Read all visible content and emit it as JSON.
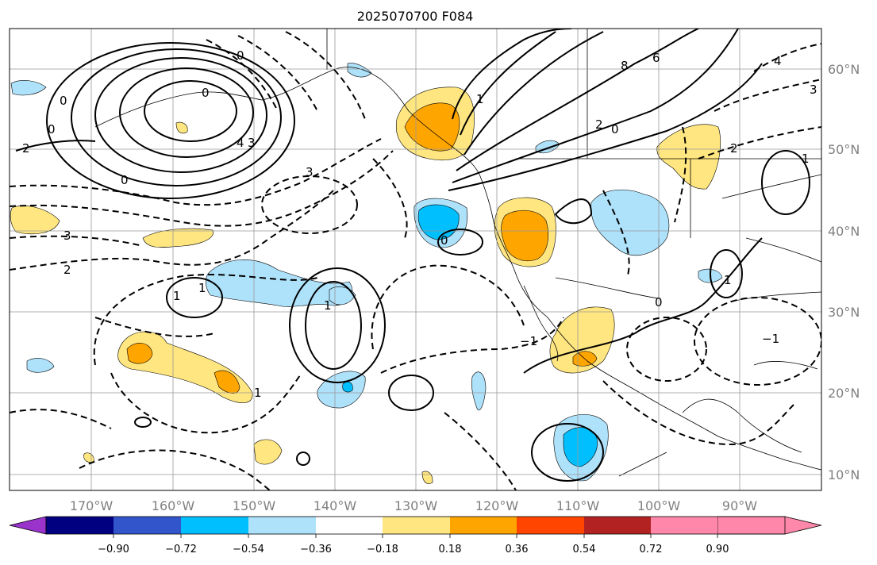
{
  "map": {
    "title": "2025070700 F084",
    "longitude_labels": [
      "170°W",
      "160°W",
      "150°W",
      "140°W",
      "130°W",
      "120°W",
      "110°W",
      "100°W",
      "90°W"
    ],
    "latitude_labels": [
      "60°N",
      "50°N",
      "40°N",
      "30°N",
      "20°N",
      "10°N"
    ],
    "colorbar": {
      "colors": [
        "#9933cc",
        "#000080",
        "#3355cc",
        "#00bfff",
        "#aee1fa",
        "#ffffff",
        "#ffe680",
        "#ffa500",
        "#ff4500",
        "#b22222",
        "#ff88aa"
      ],
      "ticks": [
        "−0.90",
        "−0.72",
        "−0.54",
        "−0.36",
        "−0.18",
        "0.18",
        "0.36",
        "0.54",
        "0.72",
        "0.90"
      ]
    },
    "contour_labels": [
      "0",
      "0",
      "0",
      "0",
      "0",
      "0",
      "0",
      "0",
      "1",
      "1",
      "1",
      "1",
      "1",
      "1",
      "2",
      "2",
      "2",
      "2",
      "3",
      "3",
      "3",
      "3",
      "4",
      "4",
      "6",
      "8",
      "−1",
      "1",
      "−1"
    ]
  }
}
